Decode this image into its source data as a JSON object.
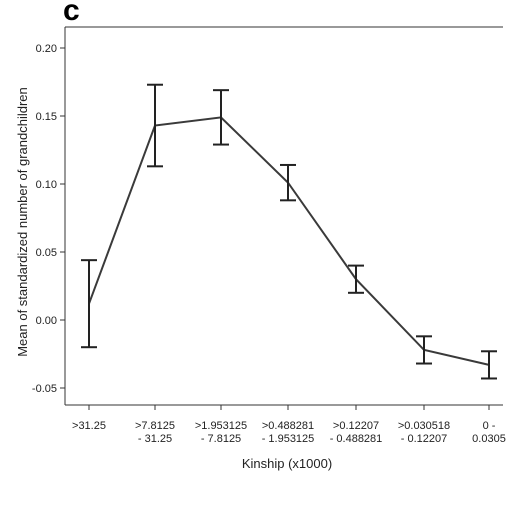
{
  "panel_label": "c",
  "chart_data": {
    "type": "line",
    "xlabel": "Kinship (x1000)",
    "ylabel": "Mean of standardized number of grandchildren",
    "ylim": [
      -0.06,
      0.21
    ],
    "yticks": [
      "-0.05",
      "0.00",
      "0.05",
      "0.10",
      "0.15",
      "0.20"
    ],
    "ytick_values": [
      -0.05,
      0,
      0.05,
      0.1,
      0.15,
      0.2
    ],
    "categories": [
      [
        ">31.25"
      ],
      [
        ">7.8125",
        "- 31.25"
      ],
      [
        ">1.953125",
        "- 7.8125"
      ],
      [
        ">0.488281",
        "- 1.953125"
      ],
      [
        ">0.12207",
        "- 0.488281"
      ],
      [
        ">0.030518",
        "- 0.12207"
      ],
      [
        "0 -",
        "0.0305"
      ]
    ],
    "means": [
      0.012,
      0.143,
      0.149,
      0.101,
      0.03,
      -0.022,
      -0.033
    ],
    "lower": [
      -0.02,
      0.113,
      0.129,
      0.088,
      0.02,
      -0.032,
      -0.043
    ],
    "upper": [
      0.044,
      0.173,
      0.169,
      0.114,
      0.04,
      -0.012,
      -0.023
    ],
    "line_color": "#3a3a3a",
    "grid": false
  }
}
